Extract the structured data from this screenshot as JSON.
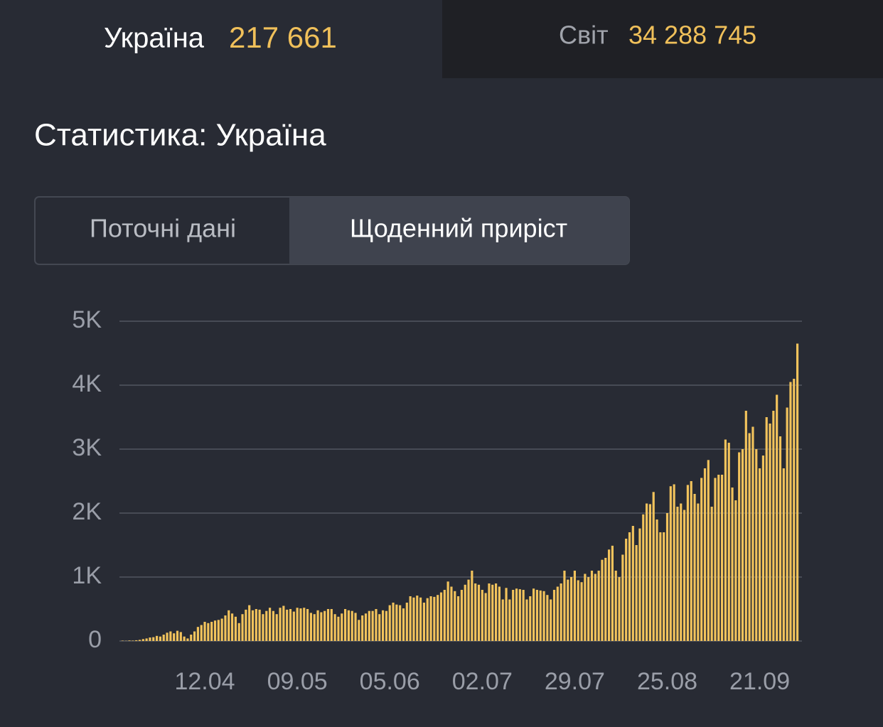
{
  "tabs": [
    {
      "label": "Україна",
      "value": "217 661"
    },
    {
      "label": "Світ",
      "value": "34 288 745"
    }
  ],
  "heading": "Статистика: Україна",
  "segments": [
    "Поточні дані",
    "Щоденний приріст"
  ],
  "chart_data": {
    "type": "bar",
    "color": "#f2c35c",
    "grid": true,
    "categories": [
      null,
      null,
      null,
      null,
      null,
      null,
      null,
      null,
      null,
      null,
      null,
      null,
      null,
      null,
      null,
      null,
      null,
      null,
      null,
      null,
      null,
      null,
      null,
      null,
      "12.04",
      null,
      null,
      null,
      null,
      null,
      null,
      null,
      null,
      null,
      null,
      null,
      null,
      null,
      null,
      null,
      null,
      null,
      null,
      null,
      null,
      null,
      null,
      null,
      null,
      null,
      null,
      "09.05",
      null,
      null,
      null,
      null,
      null,
      null,
      null,
      null,
      null,
      null,
      null,
      null,
      null,
      null,
      null,
      null,
      null,
      null,
      null,
      null,
      null,
      null,
      null,
      null,
      null,
      null,
      "05.06",
      null,
      null,
      null,
      null,
      null,
      null,
      null,
      null,
      null,
      null,
      null,
      null,
      null,
      null,
      null,
      null,
      null,
      null,
      null,
      null,
      null,
      null,
      null,
      null,
      null,
      null,
      "02.07",
      null,
      null,
      null,
      null,
      null,
      null,
      null,
      null,
      null,
      null,
      null,
      null,
      null,
      null,
      null,
      null,
      null,
      null,
      null,
      null,
      null,
      null,
      null,
      null,
      null,
      null,
      "29.07",
      null,
      null,
      null,
      null,
      null,
      null,
      null,
      null,
      null,
      null,
      null,
      null,
      null,
      null,
      null,
      null,
      null,
      null,
      null,
      null,
      null,
      null,
      null,
      null,
      null,
      null,
      "25.08",
      null,
      null,
      null,
      null,
      null,
      null,
      null,
      null,
      null,
      null,
      null,
      null,
      null,
      null,
      null,
      null,
      null,
      null,
      null,
      null,
      null,
      null,
      null,
      null,
      null,
      null,
      "21.09",
      null,
      null,
      null,
      null,
      null,
      null,
      null,
      null,
      null,
      null,
      null
    ],
    "values": [
      5,
      3,
      8,
      6,
      12,
      18,
      30,
      40,
      55,
      60,
      80,
      70,
      100,
      130,
      150,
      120,
      160,
      140,
      70,
      40,
      100,
      150,
      220,
      250,
      300,
      280,
      300,
      320,
      330,
      350,
      400,
      480,
      430,
      380,
      280,
      420,
      490,
      560,
      480,
      500,
      490,
      420,
      470,
      520,
      470,
      420,
      520,
      550,
      490,
      500,
      460,
      520,
      510,
      520,
      500,
      440,
      420,
      480,
      450,
      470,
      500,
      500,
      420,
      380,
      430,
      500,
      480,
      470,
      440,
      330,
      400,
      430,
      470,
      470,
      500,
      420,
      480,
      470,
      560,
      600,
      570,
      560,
      510,
      600,
      700,
      680,
      710,
      680,
      600,
      670,
      700,
      690,
      720,
      760,
      800,
      930,
      850,
      780,
      700,
      800,
      880,
      960,
      1100,
      900,
      880,
      800,
      750,
      900,
      880,
      900,
      850,
      650,
      830,
      650,
      800,
      820,
      810,
      800,
      650,
      700,
      820,
      800,
      790,
      780,
      720,
      650,
      800,
      850,
      900,
      1100,
      960,
      1000,
      1100,
      950,
      920,
      1050,
      1000,
      1100,
      1050,
      1100,
      1270,
      1300,
      1430,
      1490,
      1100,
      1000,
      1350,
      1600,
      1700,
      1800,
      1500,
      1760,
      1980,
      2150,
      2140,
      2330,
      1900,
      1700,
      1700,
      2000,
      2420,
      2450,
      2100,
      2150,
      2050,
      2440,
      2500,
      2300,
      2150,
      2550,
      2700,
      2830,
      2100,
      2550,
      2600,
      2600,
      3150,
      3100,
      2400,
      2200,
      2950,
      3000,
      3600,
      3250,
      3350,
      3000,
      2700,
      2900,
      3500,
      3400,
      3600,
      3850,
      3200,
      2700,
      3650,
      4050,
      4100,
      4650
    ],
    "ylim": [
      0,
      5000
    ],
    "yticks": [
      0,
      {
        "value": 1000,
        "label": "1K"
      },
      {
        "value": 2000,
        "label": "2K"
      },
      {
        "value": 3000,
        "label": "3K"
      },
      {
        "value": 4000,
        "label": "4K"
      },
      {
        "value": 5000,
        "label": "5K"
      }
    ]
  }
}
